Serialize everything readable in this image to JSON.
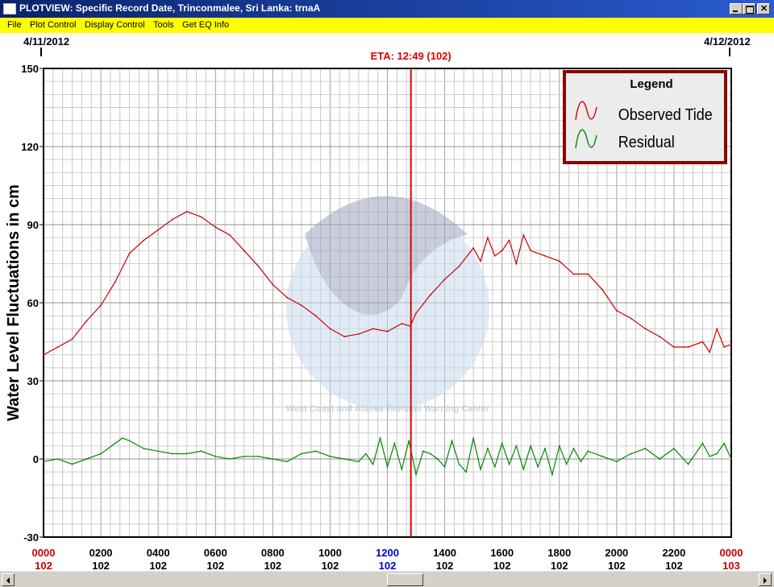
{
  "window": {
    "title": "PLOTVIEW: Specific Record Date, Trinconmalee, Sri Lanka: trnaA"
  },
  "menu": [
    "File",
    "Plot Control",
    "Display Control",
    "Tools",
    "Get EQ Info"
  ],
  "dates": {
    "start": "4/11/2012",
    "end": "4/12/2012"
  },
  "eta": {
    "label": "ETA: 12:49 (102)",
    "hour": 12.82,
    "color": "#dd0000"
  },
  "watermark": {
    "text": "West Coast and Alaska Tsunami Warning Center"
  },
  "legend": {
    "title": "Legend",
    "items": [
      {
        "label": "Observed Tide",
        "color": "#cc0000"
      },
      {
        "label": "Residual",
        "color": "#008800"
      }
    ]
  },
  "colors": {
    "observed": "#cc0000",
    "residual": "#008800",
    "eta_line": "#dd0000",
    "day_label": "#cc0000",
    "noon_label": "#0000cc"
  },
  "chart_data": {
    "type": "line",
    "ylabel": "Water Level Fluctuations in cm",
    "xlabel": "",
    "ylim": [
      -30,
      150
    ],
    "xlim": [
      0,
      24
    ],
    "yticks": [
      150,
      120,
      90,
      60,
      30,
      0,
      -30
    ],
    "xticks": [
      {
        "hour": 0,
        "time": "0000",
        "day": "102",
        "style": "day"
      },
      {
        "hour": 2,
        "time": "0200",
        "day": "102",
        "style": "normal"
      },
      {
        "hour": 4,
        "time": "0400",
        "day": "102",
        "style": "normal"
      },
      {
        "hour": 6,
        "time": "0600",
        "day": "102",
        "style": "normal"
      },
      {
        "hour": 8,
        "time": "0800",
        "day": "102",
        "style": "normal"
      },
      {
        "hour": 10,
        "time": "1000",
        "day": "102",
        "style": "normal"
      },
      {
        "hour": 12,
        "time": "1200",
        "day": "102",
        "style": "noon"
      },
      {
        "hour": 14,
        "time": "1400",
        "day": "102",
        "style": "normal"
      },
      {
        "hour": 16,
        "time": "1600",
        "day": "102",
        "style": "normal"
      },
      {
        "hour": 18,
        "time": "1800",
        "day": "102",
        "style": "normal"
      },
      {
        "hour": 20,
        "time": "2000",
        "day": "102",
        "style": "normal"
      },
      {
        "hour": 22,
        "time": "2200",
        "day": "102",
        "style": "normal"
      },
      {
        "hour": 24,
        "time": "0000",
        "day": "103",
        "style": "day"
      }
    ],
    "grid": true,
    "legend_position": "top-right",
    "series": [
      {
        "name": "Observed Tide",
        "x": [
          0,
          0.5,
          1,
          1.5,
          2,
          2.5,
          3,
          3.5,
          4,
          4.5,
          5,
          5.5,
          6,
          6.5,
          7,
          7.5,
          8,
          8.5,
          9,
          9.5,
          10,
          10.5,
          11,
          11.5,
          12,
          12.5,
          12.8,
          13,
          13.5,
          14,
          14.5,
          15,
          15.25,
          15.5,
          15.75,
          16,
          16.25,
          16.5,
          16.75,
          17,
          17.5,
          18,
          18.5,
          19,
          19.5,
          20,
          20.5,
          21,
          21.5,
          22,
          22.5,
          23,
          23.25,
          23.5,
          23.75,
          24
        ],
        "values": [
          40,
          43,
          46,
          53,
          59,
          68,
          79,
          84,
          88,
          92,
          95,
          93,
          89,
          86,
          80,
          74,
          67,
          62,
          59,
          55,
          50,
          47,
          48,
          50,
          49,
          52,
          51,
          56,
          63,
          69,
          74,
          81,
          76,
          85,
          78,
          80,
          84,
          75,
          86,
          80,
          78,
          76,
          71,
          71,
          65,
          57,
          54,
          50,
          47,
          43,
          43,
          45,
          41,
          50,
          43,
          44
        ]
      },
      {
        "name": "Residual",
        "x": [
          0,
          0.5,
          1,
          1.5,
          2,
          2.5,
          2.75,
          3,
          3.5,
          4,
          4.5,
          5,
          5.5,
          6,
          6.5,
          7,
          7.5,
          8,
          8.5,
          9,
          9.5,
          10,
          10.5,
          11,
          11.25,
          11.5,
          11.75,
          12,
          12.25,
          12.5,
          12.75,
          13,
          13.25,
          13.5,
          13.75,
          14,
          14.25,
          14.5,
          14.75,
          15,
          15.25,
          15.5,
          15.75,
          16,
          16.25,
          16.5,
          16.75,
          17,
          17.25,
          17.5,
          17.75,
          18,
          18.25,
          18.5,
          18.75,
          19,
          19.5,
          20,
          20.5,
          21,
          21.5,
          22,
          22.5,
          23,
          23.25,
          23.5,
          23.75,
          24
        ],
        "values": [
          -1,
          0,
          -2,
          0,
          2,
          6,
          8,
          7,
          4,
          3,
          2,
          2,
          3,
          1,
          0,
          1,
          1,
          0,
          -1,
          2,
          3,
          1,
          0,
          -1,
          2,
          -2,
          8,
          -3,
          6,
          -4,
          7,
          -6,
          3,
          2,
          0,
          -3,
          7,
          -2,
          -5,
          8,
          -4,
          4,
          -3,
          6,
          -2,
          5,
          -4,
          5,
          -3,
          4,
          -6,
          5,
          -2,
          4,
          -1,
          3,
          1,
          -1,
          2,
          4,
          0,
          4,
          -2,
          6,
          1,
          2,
          6,
          0
        ]
      }
    ]
  }
}
